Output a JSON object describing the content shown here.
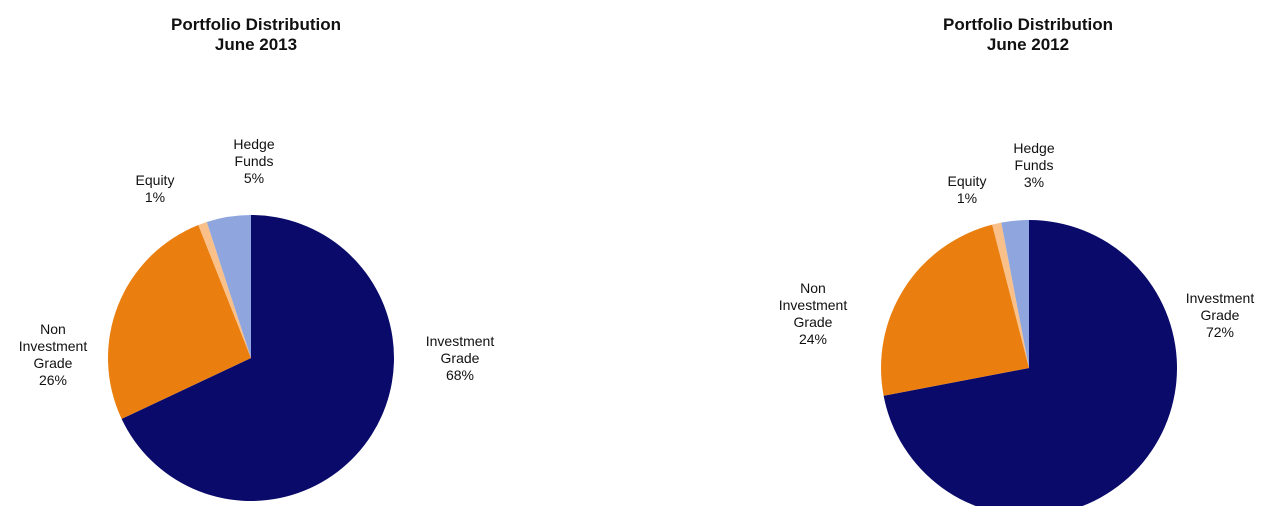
{
  "chart_data": [
    {
      "type": "pie",
      "title": [
        "Portfolio Distribution",
        "June 2013"
      ],
      "slices": [
        {
          "label": [
            "Investment",
            "Grade",
            "68%"
          ],
          "value": 68,
          "color": "#0a0a6b"
        },
        {
          "label": [
            "Non",
            "Investment",
            "Grade",
            "26%"
          ],
          "value": 26,
          "color": "#ea7f0f"
        },
        {
          "label": [
            "Equity",
            "1%"
          ],
          "value": 1,
          "color": "#f9c08a"
        },
        {
          "label": [
            "Hedge",
            "Funds",
            "5%"
          ],
          "value": 5,
          "color": "#8ea6dd"
        }
      ]
    },
    {
      "type": "pie",
      "title": [
        "Portfolio Distribution",
        "June 2012"
      ],
      "slices": [
        {
          "label": [
            "Investment",
            "Grade",
            "72%"
          ],
          "value": 72,
          "color": "#0a0a6b"
        },
        {
          "label": [
            "Non",
            "Investment",
            "Grade",
            "24%"
          ],
          "value": 24,
          "color": "#ea7f0f"
        },
        {
          "label": [
            "Equity",
            "1%"
          ],
          "value": 1,
          "color": "#f9c08a"
        },
        {
          "label": [
            "Hedge",
            "Funds",
            "3%"
          ],
          "value": 3,
          "color": "#8ea6dd"
        }
      ]
    }
  ]
}
